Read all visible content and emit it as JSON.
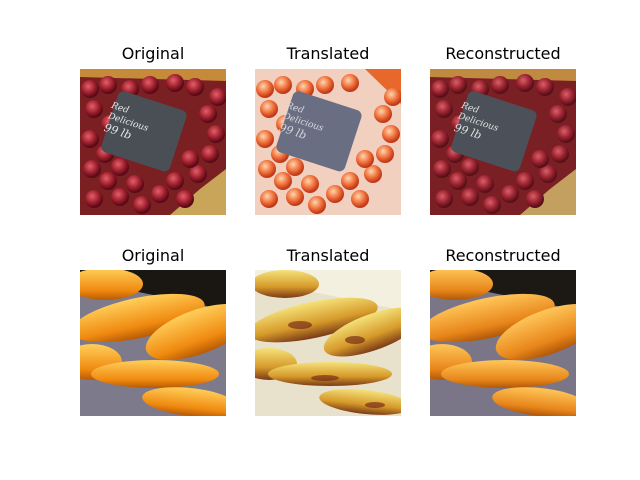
{
  "figure": {
    "rows": [
      {
        "panels": [
          {
            "title": "Original"
          },
          {
            "title": "Translated"
          },
          {
            "title": "Reconstructed"
          }
        ],
        "sign_text": [
          "Red",
          "Delicious",
          "99 lb"
        ]
      },
      {
        "panels": [
          {
            "title": "Original"
          },
          {
            "title": "Translated"
          },
          {
            "title": "Reconstructed"
          }
        ]
      }
    ]
  }
}
